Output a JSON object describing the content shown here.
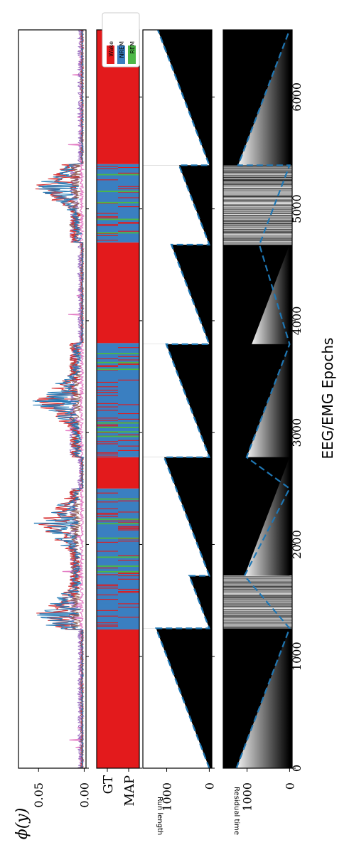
{
  "chart_data": [
    {
      "panel": "feature",
      "type": "line",
      "ylabel": "ϕ(y)",
      "yticks": [
        "0.05",
        "0.00"
      ],
      "ylim": [
        -0.002,
        0.072
      ],
      "xlim": [
        0,
        6600
      ],
      "series": [
        {
          "color": "#e377c2",
          "description": "baseline feature trace (pink)"
        },
        {
          "color": "#9467bd",
          "description": "purple trace"
        },
        {
          "color": "#8c564b",
          "description": "brown trace"
        },
        {
          "color": "#d62728",
          "description": "red trace"
        },
        {
          "color": "#1f77b4",
          "description": "blue trace"
        }
      ],
      "peaks": [
        {
          "x": 1380,
          "y": 0.049
        },
        {
          "x": 2190,
          "y": 0.055
        },
        {
          "x": 3280,
          "y": 0.054
        },
        {
          "x": 5200,
          "y": 0.05
        }
      ]
    },
    {
      "panel": "hypnogram",
      "type": "heatmap",
      "row_labels": [
        "GT",
        "MAP"
      ],
      "legend": [
        {
          "name": "Wake",
          "color": "#e31a1c"
        },
        {
          "name": "NREM",
          "color": "#3a7fc1"
        },
        {
          "name": "REM",
          "color": "#4db848"
        }
      ],
      "legend_position": "top-right",
      "segments": [
        {
          "start": 0,
          "end": 1240,
          "state": "Wake"
        },
        {
          "start": 1240,
          "end": 1740,
          "state": "NREM"
        },
        {
          "start": 1740,
          "end": 2500,
          "state": "NREM"
        },
        {
          "start": 2500,
          "end": 2780,
          "state": "Wake"
        },
        {
          "start": 2780,
          "end": 3800,
          "state": "NREM"
        },
        {
          "start": 3800,
          "end": 4700,
          "state": "Wake"
        },
        {
          "start": 4700,
          "end": 5400,
          "state": "NREM"
        },
        {
          "start": 5400,
          "end": 6600,
          "state": "Wake"
        }
      ],
      "rem_marks": [
        1750,
        1800,
        1880,
        2050,
        2180,
        2220,
        2400,
        2960,
        3000,
        3040,
        3080,
        3560,
        3620,
        3700,
        4780,
        4900,
        5050,
        5150,
        5300
      ]
    },
    {
      "panel": "run_length",
      "type": "area",
      "ylabel": "Run length",
      "yticks": [
        "1000",
        "0"
      ],
      "ylim": [
        -60,
        1560
      ],
      "changepoints": [
        0,
        1250,
        1720,
        2780,
        3790,
        4680,
        5390
      ],
      "map_line": [
        [
          0,
          0
        ],
        [
          1250,
          1250
        ],
        [
          1250,
          0
        ],
        [
          1720,
          470
        ],
        [
          1720,
          0
        ],
        [
          2780,
          1060
        ],
        [
          2780,
          0
        ],
        [
          3790,
          1010
        ],
        [
          3790,
          0
        ],
        [
          4680,
          890
        ],
        [
          4680,
          0
        ],
        [
          5390,
          710
        ],
        [
          5390,
          0
        ],
        [
          6600,
          1210
        ]
      ]
    },
    {
      "panel": "residual_time",
      "type": "heatmap",
      "ylabel": "Residual time",
      "yticks": [
        "1000",
        "0"
      ],
      "ylim": [
        -60,
        1560
      ],
      "xlabel": "EEG/EMG Epochs",
      "xticks": [
        0,
        1000,
        2000,
        3000,
        4000,
        5000,
        6000
      ],
      "residual_line": [
        [
          0,
          1250
        ],
        [
          1250,
          0
        ],
        [
          1720,
          1060
        ],
        [
          2500,
          0
        ],
        [
          2780,
          1010
        ],
        [
          3790,
          0
        ],
        [
          4680,
          710
        ],
        [
          5390,
          0
        ],
        [
          5390,
          1210
        ],
        [
          6600,
          0
        ]
      ]
    }
  ]
}
